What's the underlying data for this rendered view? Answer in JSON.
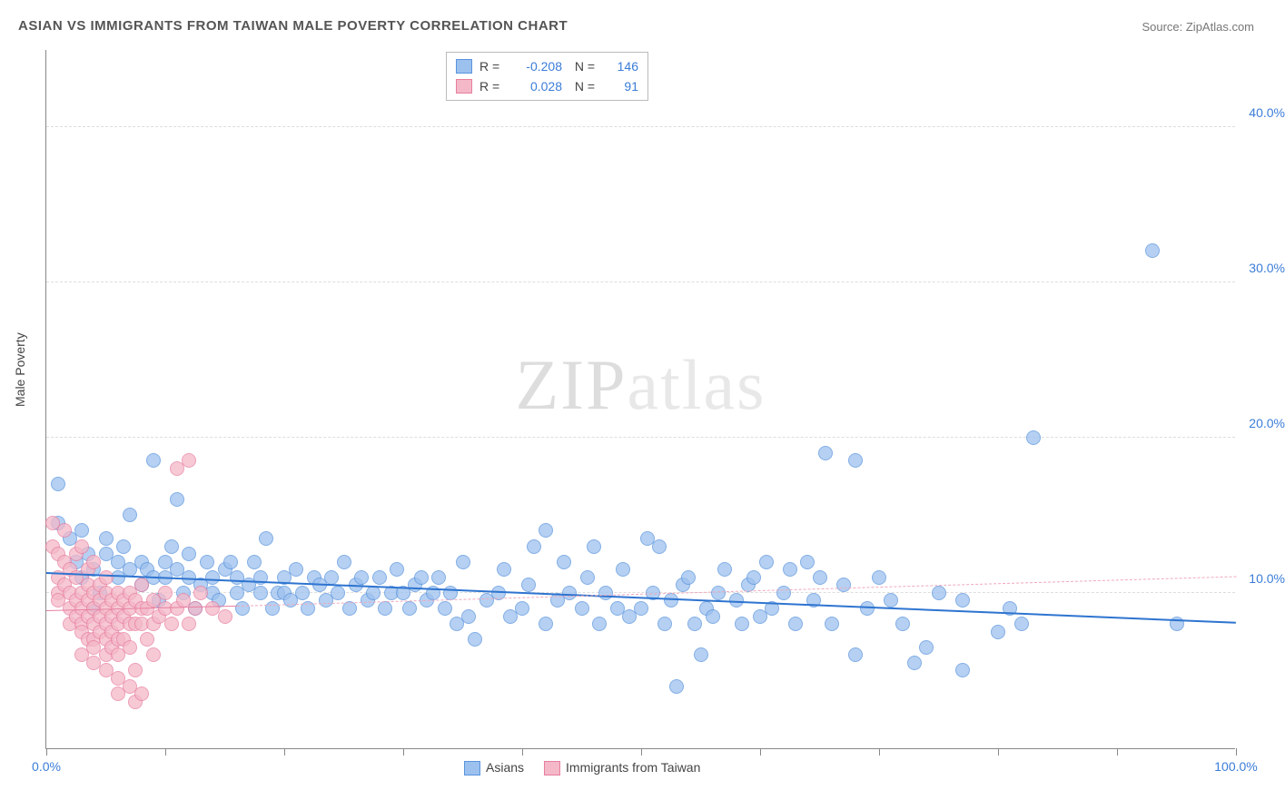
{
  "title": "ASIAN VS IMMIGRANTS FROM TAIWAN MALE POVERTY CORRELATION CHART",
  "source": "Source: ZipAtlas.com",
  "watermark_a": "ZIP",
  "watermark_b": "atlas",
  "ylabel": "Male Poverty",
  "chart": {
    "type": "scatter",
    "xlim": [
      0,
      100
    ],
    "ylim": [
      0,
      45
    ],
    "yticks": [
      10,
      20,
      30,
      40
    ],
    "ytick_labels": [
      "10.0%",
      "20.0%",
      "30.0%",
      "40.0%"
    ],
    "xticks": [
      0,
      10,
      20,
      30,
      40,
      50,
      60,
      70,
      80,
      90,
      100
    ],
    "xtick_labels_shown": {
      "0": "0.0%",
      "100": "100.0%"
    },
    "background_color": "#ffffff",
    "grid_color": "#dddddd",
    "axis_color": "#888888",
    "marker_radius": 8,
    "marker_border": 1.2,
    "fill_opacity": 0.35,
    "series": [
      {
        "name": "Asians",
        "color_fill": "#9dc1ee",
        "color_stroke": "#5a94dd",
        "R": "-0.208",
        "N": "146",
        "trend": {
          "x1": 0,
          "y1": 11.2,
          "x2": 100,
          "y2": 8.0,
          "color": "#2e74d0",
          "width": 2.2,
          "dash": false
        },
        "data": [
          [
            1,
            17
          ],
          [
            1,
            14.5
          ],
          [
            2,
            13.5
          ],
          [
            2.5,
            12
          ],
          [
            3,
            11
          ],
          [
            3.5,
            12.5
          ],
          [
            3,
            14
          ],
          [
            4,
            11.5
          ],
          [
            4,
            9
          ],
          [
            4.5,
            10
          ],
          [
            5,
            12.5
          ],
          [
            5,
            13.5
          ],
          [
            6,
            11
          ],
          [
            6,
            12
          ],
          [
            6.5,
            13
          ],
          [
            7,
            11.5
          ],
          [
            7,
            15
          ],
          [
            8,
            12
          ],
          [
            8,
            10.5
          ],
          [
            8.5,
            11.5
          ],
          [
            9,
            11
          ],
          [
            9,
            18.5
          ],
          [
            9.5,
            9.5
          ],
          [
            10,
            11
          ],
          [
            10,
            12
          ],
          [
            10.5,
            13
          ],
          [
            11,
            16
          ],
          [
            11,
            11.5
          ],
          [
            11.5,
            10
          ],
          [
            12,
            11
          ],
          [
            12,
            12.5
          ],
          [
            12.5,
            9
          ],
          [
            13,
            10.5
          ],
          [
            13.5,
            12
          ],
          [
            14,
            11
          ],
          [
            14,
            10
          ],
          [
            14.5,
            9.5
          ],
          [
            15,
            11.5
          ],
          [
            15.5,
            12
          ],
          [
            16,
            10
          ],
          [
            16,
            11
          ],
          [
            16.5,
            9
          ],
          [
            17,
            10.5
          ],
          [
            17.5,
            12
          ],
          [
            18,
            10
          ],
          [
            18,
            11
          ],
          [
            18.5,
            13.5
          ],
          [
            19,
            9
          ],
          [
            19.5,
            10
          ],
          [
            20,
            11
          ],
          [
            20,
            10
          ],
          [
            20.5,
            9.5
          ],
          [
            21,
            11.5
          ],
          [
            21.5,
            10
          ],
          [
            22,
            9
          ],
          [
            22.5,
            11
          ],
          [
            23,
            10.5
          ],
          [
            23.5,
            9.5
          ],
          [
            24,
            11
          ],
          [
            24.5,
            10
          ],
          [
            25,
            12
          ],
          [
            25.5,
            9
          ],
          [
            26,
            10.5
          ],
          [
            26.5,
            11
          ],
          [
            27,
            9.5
          ],
          [
            27.5,
            10
          ],
          [
            28,
            11
          ],
          [
            28.5,
            9
          ],
          [
            29,
            10
          ],
          [
            29.5,
            11.5
          ],
          [
            30,
            10
          ],
          [
            30.5,
            9
          ],
          [
            31,
            10.5
          ],
          [
            31.5,
            11
          ],
          [
            32,
            9.5
          ],
          [
            32.5,
            10
          ],
          [
            33,
            11
          ],
          [
            33.5,
            9
          ],
          [
            34,
            10
          ],
          [
            34.5,
            8
          ],
          [
            35,
            12
          ],
          [
            35.5,
            8.5
          ],
          [
            36,
            7
          ],
          [
            37,
            9.5
          ],
          [
            38,
            10
          ],
          [
            38.5,
            11.5
          ],
          [
            39,
            8.5
          ],
          [
            40,
            9
          ],
          [
            40.5,
            10.5
          ],
          [
            41,
            13
          ],
          [
            42,
            14
          ],
          [
            42,
            8
          ],
          [
            43,
            9.5
          ],
          [
            43.5,
            12
          ],
          [
            44,
            10
          ],
          [
            45,
            9
          ],
          [
            45.5,
            11
          ],
          [
            46,
            13
          ],
          [
            46.5,
            8
          ],
          [
            47,
            10
          ],
          [
            48,
            9
          ],
          [
            48.5,
            11.5
          ],
          [
            49,
            8.5
          ],
          [
            50,
            9
          ],
          [
            50.5,
            13.5
          ],
          [
            51,
            10
          ],
          [
            51.5,
            13
          ],
          [
            52,
            8
          ],
          [
            52.5,
            9.5
          ],
          [
            53,
            4
          ],
          [
            53.5,
            10.5
          ],
          [
            54,
            11
          ],
          [
            54.5,
            8
          ],
          [
            55,
            6
          ],
          [
            55.5,
            9
          ],
          [
            56,
            8.5
          ],
          [
            56.5,
            10
          ],
          [
            57,
            11.5
          ],
          [
            58,
            9.5
          ],
          [
            58.5,
            8
          ],
          [
            59,
            10.5
          ],
          [
            59.5,
            11
          ],
          [
            60,
            8.5
          ],
          [
            60.5,
            12
          ],
          [
            61,
            9
          ],
          [
            62,
            10
          ],
          [
            62.5,
            11.5
          ],
          [
            63,
            8
          ],
          [
            64,
            12
          ],
          [
            64.5,
            9.5
          ],
          [
            65,
            11
          ],
          [
            65.5,
            19
          ],
          [
            66,
            8
          ],
          [
            67,
            10.5
          ],
          [
            68,
            18.5
          ],
          [
            68,
            6
          ],
          [
            69,
            9
          ],
          [
            70,
            11
          ],
          [
            71,
            9.5
          ],
          [
            72,
            8
          ],
          [
            73,
            5.5
          ],
          [
            74,
            6.5
          ],
          [
            75,
            10
          ],
          [
            77,
            5
          ],
          [
            77,
            9.5
          ],
          [
            80,
            7.5
          ],
          [
            81,
            9
          ],
          [
            82,
            8
          ],
          [
            83,
            20
          ],
          [
            93,
            32
          ],
          [
            95,
            8
          ]
        ]
      },
      {
        "name": "Immigrants from Taiwan",
        "color_fill": "#f4b8c8",
        "color_stroke": "#e87fa0",
        "R": "0.028",
        "N": "91",
        "trend_solid": {
          "x1": 0,
          "y1": 8.8,
          "x2": 16,
          "y2": 9.1,
          "color": "#e87fa0",
          "width": 1.8,
          "dash": false
        },
        "trend_dash": {
          "x1": 16,
          "y1": 9.1,
          "x2": 100,
          "y2": 11.0,
          "color": "#f0a8bc",
          "width": 1.2,
          "dash": true
        },
        "data": [
          [
            0.5,
            14.5
          ],
          [
            0.5,
            13
          ],
          [
            1,
            12.5
          ],
          [
            1,
            11
          ],
          [
            1,
            10
          ],
          [
            1,
            9.5
          ],
          [
            1.5,
            10.5
          ],
          [
            1.5,
            12
          ],
          [
            1.5,
            14
          ],
          [
            2,
            11.5
          ],
          [
            2,
            10
          ],
          [
            2,
            9
          ],
          [
            2,
            8
          ],
          [
            2.5,
            9.5
          ],
          [
            2.5,
            8.5
          ],
          [
            2.5,
            11
          ],
          [
            2.5,
            12.5
          ],
          [
            3,
            13
          ],
          [
            3,
            10
          ],
          [
            3,
            9
          ],
          [
            3,
            8
          ],
          [
            3,
            7.5
          ],
          [
            3,
            6
          ],
          [
            3.5,
            9.5
          ],
          [
            3.5,
            8.5
          ],
          [
            3.5,
            7
          ],
          [
            3.5,
            10.5
          ],
          [
            3.5,
            11.5
          ],
          [
            4,
            12
          ],
          [
            4,
            10
          ],
          [
            4,
            9
          ],
          [
            4,
            8
          ],
          [
            4,
            7
          ],
          [
            4,
            6.5
          ],
          [
            4,
            5.5
          ],
          [
            4.5,
            9.5
          ],
          [
            4.5,
            8.5
          ],
          [
            4.5,
            7.5
          ],
          [
            4.5,
            10.5
          ],
          [
            5,
            11
          ],
          [
            5,
            10
          ],
          [
            5,
            9
          ],
          [
            5,
            8
          ],
          [
            5,
            7
          ],
          [
            5,
            6
          ],
          [
            5,
            5
          ],
          [
            5.5,
            9.5
          ],
          [
            5.5,
            8.5
          ],
          [
            5.5,
            7.5
          ],
          [
            5.5,
            6.5
          ],
          [
            6,
            10
          ],
          [
            6,
            9
          ],
          [
            6,
            8
          ],
          [
            6,
            7
          ],
          [
            6,
            6
          ],
          [
            6,
            4.5
          ],
          [
            6,
            3.5
          ],
          [
            6.5,
            9.5
          ],
          [
            6.5,
            8.5
          ],
          [
            6.5,
            7
          ],
          [
            7,
            10
          ],
          [
            7,
            9
          ],
          [
            7,
            8
          ],
          [
            7,
            6.5
          ],
          [
            7,
            4
          ],
          [
            7.5,
            9.5
          ],
          [
            7.5,
            8
          ],
          [
            7.5,
            5
          ],
          [
            7.5,
            3
          ],
          [
            8,
            9
          ],
          [
            8,
            8
          ],
          [
            8,
            10.5
          ],
          [
            8,
            3.5
          ],
          [
            8.5,
            9
          ],
          [
            8.5,
            7
          ],
          [
            9,
            8
          ],
          [
            9,
            9.5
          ],
          [
            9,
            6
          ],
          [
            9.5,
            8.5
          ],
          [
            10,
            9
          ],
          [
            10,
            10
          ],
          [
            10.5,
            8
          ],
          [
            11,
            9
          ],
          [
            11,
            18
          ],
          [
            11.5,
            9.5
          ],
          [
            12,
            8
          ],
          [
            12,
            18.5
          ],
          [
            12.5,
            9
          ],
          [
            13,
            10
          ],
          [
            14,
            9
          ],
          [
            15,
            8.5
          ]
        ]
      }
    ]
  },
  "legend_bottom": [
    {
      "label": "Asians",
      "fill": "#9dc1ee",
      "stroke": "#5a94dd"
    },
    {
      "label": "Immigrants from Taiwan",
      "fill": "#f4b8c8",
      "stroke": "#e87fa0"
    }
  ]
}
